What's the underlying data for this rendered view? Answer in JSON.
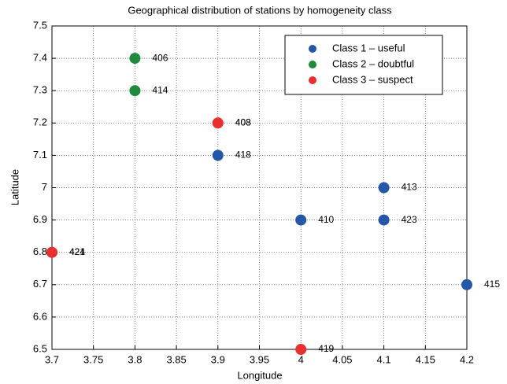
{
  "chart_data": {
    "type": "scatter",
    "title": "Geographical distribution of stations by homogeneity class",
    "x_label": "Longitude",
    "y_label": "Latitude",
    "xlim": [
      3.7,
      4.2
    ],
    "xticks": [
      3.7,
      3.75,
      3.8,
      3.85,
      3.9,
      3.95,
      4,
      4.05,
      4.1,
      4.15,
      4.2
    ],
    "ylim": [
      6.5,
      7.5
    ],
    "yticks": [
      6.5,
      6.6,
      6.7,
      6.8,
      6.9,
      7,
      7.1,
      7.2,
      7.3,
      7.4,
      7.5
    ],
    "grid": true,
    "legend": "upper right",
    "series": [
      {
        "name": "Class 1 – useful",
        "color": "#2457a6",
        "x": [
          3.9,
          4.1,
          4,
          4.1,
          4.2
        ],
        "values": [
          7.1,
          7,
          6.9,
          6.9,
          6.7
        ],
        "labels": [
          "418",
          "413",
          "410",
          "423",
          "415"
        ]
      },
      {
        "name": "Class 2 – doubtful",
        "color": "#1f8a3e",
        "x": [
          3.8,
          3.8
        ],
        "values": [
          7.4,
          7.3
        ],
        "labels": [
          "406",
          "414"
        ]
      },
      {
        "name": "Class 3 – suspect",
        "color": "#e8302e",
        "x": [
          3.9,
          3.9,
          3.7,
          3.7,
          4
        ],
        "values": [
          7.2,
          7.2,
          6.8,
          6.8,
          6.5
        ],
        "labels": [
          "403",
          "408",
          "421",
          "424",
          "419"
        ]
      }
    ]
  }
}
